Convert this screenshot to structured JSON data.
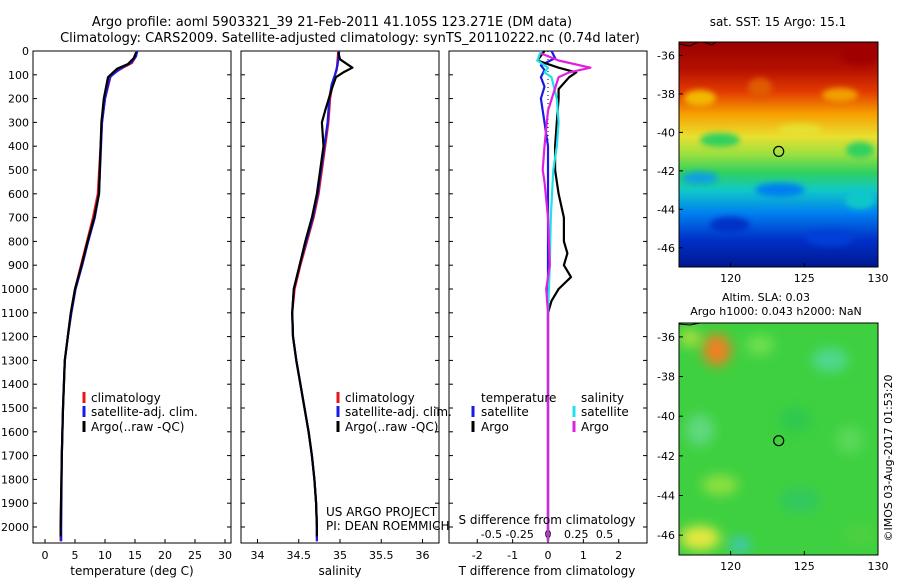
{
  "header": {
    "title_line1": "Argo profile: aoml 5903321_39 21-Feb-2011 41.105S 123.271E (DM data)",
    "title_line2": "Climatology: CARS2009. Satellite-adjusted climatology: synTS_20110222.nc (0.74d later)"
  },
  "credits": {
    "project": "US ARGO PROJECT",
    "pi": "PI: DEAN ROEMMICH",
    "imos": "©IMOS 03-Aug-2017 01:53:20"
  },
  "colors": {
    "climatology": "#e8141b",
    "satellite": "#1a1ae6",
    "argo": "#000000",
    "sal_satellite": "#22e0e8",
    "sal_argo": "#e020e0"
  },
  "chart_data": [
    {
      "type": "line",
      "id": "temperature",
      "xlabel": "temperature (deg C)",
      "xlim": [
        -2,
        31
      ],
      "ylim": [
        2060,
        0
      ],
      "xticks": [
        0,
        5,
        10,
        15,
        20,
        25,
        30
      ],
      "yticks": [
        0,
        100,
        200,
        300,
        400,
        500,
        600,
        700,
        800,
        900,
        1000,
        1100,
        1200,
        1300,
        1400,
        1500,
        1600,
        1700,
        1800,
        1900,
        2000
      ],
      "legend": [
        "climatology",
        "satellite-adj. clim.",
        "Argo(..raw -QC)"
      ],
      "series": [
        {
          "name": "climatology",
          "color": "#e8141b",
          "points": [
            [
              15.3,
              0
            ],
            [
              15.2,
              20
            ],
            [
              14.5,
              50
            ],
            [
              13.0,
              70
            ],
            [
              11.0,
              100
            ],
            [
              10.0,
              200
            ],
            [
              9.5,
              300
            ],
            [
              8.8,
              600
            ],
            [
              8.0,
              700
            ],
            [
              7.0,
              800
            ],
            [
              6.0,
              900
            ],
            [
              5.0,
              1000
            ],
            [
              4.3,
              1100
            ],
            [
              3.8,
              1200
            ],
            [
              3.3,
              1300
            ],
            [
              3.0,
              1500
            ],
            [
              2.8,
              1700
            ],
            [
              2.6,
              2000
            ],
            [
              2.6,
              2060
            ]
          ]
        },
        {
          "name": "satellite-adj. clim.",
          "color": "#1a1ae6",
          "points": [
            [
              15.4,
              0
            ],
            [
              15.1,
              25
            ],
            [
              14.3,
              50
            ],
            [
              12.5,
              75
            ],
            [
              10.8,
              110
            ],
            [
              10.0,
              200
            ],
            [
              9.5,
              300
            ],
            [
              9.0,
              600
            ],
            [
              8.3,
              700
            ],
            [
              7.2,
              800
            ],
            [
              6.2,
              900
            ],
            [
              5.1,
              1000
            ],
            [
              4.4,
              1100
            ],
            [
              3.8,
              1200
            ],
            [
              3.3,
              1300
            ],
            [
              3.0,
              1500
            ],
            [
              2.8,
              1700
            ],
            [
              2.7,
              2000
            ],
            [
              2.7,
              2060
            ]
          ]
        },
        {
          "name": "Argo(..raw -QC)",
          "color": "#000000",
          "points": [
            [
              15.2,
              5
            ],
            [
              14.8,
              30
            ],
            [
              13.8,
              55
            ],
            [
              12.0,
              75
            ],
            [
              10.5,
              110
            ],
            [
              9.8,
              200
            ],
            [
              9.4,
              300
            ],
            [
              9.0,
              600
            ],
            [
              8.2,
              700
            ],
            [
              7.1,
              800
            ],
            [
              6.1,
              900
            ],
            [
              5.0,
              1000
            ],
            [
              4.3,
              1100
            ],
            [
              3.8,
              1200
            ],
            [
              3.3,
              1300
            ],
            [
              3.0,
              1500
            ],
            [
              2.8,
              1700
            ],
            [
              2.6,
              2000
            ],
            [
              2.6,
              2040
            ]
          ]
        }
      ]
    },
    {
      "type": "line",
      "id": "salinity",
      "xlabel": "salinity",
      "xlim": [
        33.8,
        36.2
      ],
      "ylim": [
        2060,
        0
      ],
      "xticks": [
        34,
        34.5,
        35,
        35.5,
        36
      ],
      "legend": [
        "climatology",
        "satellite-adj. clim.",
        "Argo(..raw -QC)"
      ],
      "series": [
        {
          "name": "climatology",
          "color": "#e8141b",
          "points": [
            [
              34.98,
              0
            ],
            [
              34.97,
              40
            ],
            [
              34.96,
              80
            ],
            [
              34.92,
              120
            ],
            [
              34.88,
              200
            ],
            [
              34.86,
              300
            ],
            [
              34.82,
              400
            ],
            [
              34.78,
              500
            ],
            [
              34.74,
              600
            ],
            [
              34.68,
              700
            ],
            [
              34.6,
              800
            ],
            [
              34.52,
              900
            ],
            [
              34.45,
              1000
            ],
            [
              34.42,
              1100
            ],
            [
              34.43,
              1200
            ],
            [
              34.47,
              1300
            ],
            [
              34.52,
              1400
            ],
            [
              34.57,
              1500
            ],
            [
              34.62,
              1600
            ],
            [
              34.66,
              1700
            ],
            [
              34.69,
              1800
            ],
            [
              34.71,
              1900
            ],
            [
              34.72,
              2000
            ],
            [
              34.72,
              2060
            ]
          ]
        },
        {
          "name": "satellite-adj. clim.",
          "color": "#1a1ae6",
          "points": [
            [
              34.99,
              0
            ],
            [
              34.98,
              35
            ],
            [
              34.97,
              60
            ],
            [
              34.94,
              100
            ],
            [
              34.9,
              140
            ],
            [
              34.87,
              200
            ],
            [
              34.85,
              300
            ],
            [
              34.81,
              400
            ],
            [
              34.77,
              500
            ],
            [
              34.73,
              600
            ],
            [
              34.67,
              700
            ],
            [
              34.59,
              800
            ],
            [
              34.51,
              900
            ],
            [
              34.44,
              1000
            ],
            [
              34.42,
              1100
            ],
            [
              34.43,
              1200
            ],
            [
              34.47,
              1300
            ],
            [
              34.52,
              1400
            ],
            [
              34.57,
              1500
            ],
            [
              34.62,
              1600
            ],
            [
              34.66,
              1700
            ],
            [
              34.69,
              1800
            ],
            [
              34.71,
              1900
            ],
            [
              34.72,
              2000
            ],
            [
              34.72,
              2060
            ]
          ]
        },
        {
          "name": "Argo(..raw -QC)",
          "color": "#000000",
          "points": [
            [
              34.98,
              5
            ],
            [
              35.0,
              35
            ],
            [
              35.15,
              70
            ],
            [
              35.04,
              90
            ],
            [
              34.95,
              110
            ],
            [
              34.9,
              160
            ],
            [
              34.82,
              250
            ],
            [
              34.78,
              300
            ],
            [
              34.8,
              400
            ],
            [
              34.76,
              500
            ],
            [
              34.72,
              600
            ],
            [
              34.66,
              700
            ],
            [
              34.58,
              800
            ],
            [
              34.51,
              900
            ],
            [
              34.44,
              1000
            ],
            [
              34.42,
              1100
            ],
            [
              34.43,
              1200
            ],
            [
              34.47,
              1300
            ],
            [
              34.52,
              1400
            ],
            [
              34.57,
              1500
            ],
            [
              34.62,
              1600
            ],
            [
              34.66,
              1700
            ],
            [
              34.69,
              1800
            ],
            [
              34.71,
              1900
            ],
            [
              34.72,
              2000
            ],
            [
              34.72,
              2040
            ]
          ]
        }
      ]
    },
    {
      "type": "line",
      "id": "difference",
      "xlabel": "T difference from climatology",
      "top_label": "S difference from climatology",
      "xlim": [
        -2.8,
        2.8
      ],
      "ylim": [
        2060,
        0
      ],
      "xticks": [
        -2,
        -1,
        0,
        1,
        2
      ],
      "top_tick_labels": [
        "-0.5",
        "-0.25",
        "0",
        "0.25",
        "0.5"
      ],
      "legend_titles": [
        "temperature",
        "salinity"
      ],
      "legend": [
        "satellite",
        "Argo",
        "satellite",
        "Argo"
      ],
      "series": [
        {
          "name": "satellite",
          "color": "#1a1ae6",
          "points": [
            [
              0.1,
              0
            ],
            [
              0.2,
              30
            ],
            [
              -0.2,
              60
            ],
            [
              -0.1,
              80
            ],
            [
              -0.2,
              110
            ],
            [
              -0.1,
              150
            ],
            [
              -0.2,
              200
            ],
            [
              -0.1,
              300
            ],
            [
              0.0,
              400
            ],
            [
              0.0,
              600
            ],
            [
              0.0,
              800
            ],
            [
              0.0,
              1000
            ],
            [
              0.0,
              1500
            ],
            [
              0.0,
              2060
            ]
          ]
        },
        {
          "name": "Argo",
          "color": "#000000",
          "points": [
            [
              -0.1,
              0
            ],
            [
              -0.3,
              40
            ],
            [
              0.3,
              70
            ],
            [
              0.8,
              90
            ],
            [
              0.6,
              110
            ],
            [
              0.3,
              160
            ],
            [
              0.3,
              200
            ],
            [
              0.25,
              300
            ],
            [
              0.2,
              400
            ],
            [
              0.2,
              500
            ],
            [
              0.3,
              600
            ],
            [
              0.45,
              700
            ],
            [
              0.45,
              800
            ],
            [
              0.55,
              850
            ],
            [
              0.45,
              900
            ],
            [
              0.65,
              950
            ],
            [
              0.3,
              1000
            ],
            [
              0.1,
              1050
            ],
            [
              0.0,
              1100
            ],
            [
              0.0,
              1500
            ],
            [
              0.0,
              2060
            ]
          ]
        },
        {
          "name": "satellite",
          "color": "#22e0e8",
          "points": [
            [
              -0.2,
              0
            ],
            [
              -0.3,
              40
            ],
            [
              0.0,
              70
            ],
            [
              -0.1,
              90
            ],
            [
              0.1,
              110
            ],
            [
              0.25,
              200
            ],
            [
              0.3,
              300
            ],
            [
              0.25,
              400
            ],
            [
              0.15,
              500
            ],
            [
              0.08,
              700
            ],
            [
              0.05,
              900
            ],
            [
              0.0,
              1100
            ],
            [
              0.0,
              1500
            ],
            [
              0.0,
              2060
            ]
          ]
        },
        {
          "name": "Argo",
          "color": "#e020e0",
          "points": [
            [
              -0.2,
              10
            ],
            [
              0.3,
              40
            ],
            [
              1.2,
              70
            ],
            [
              0.6,
              90
            ],
            [
              0.3,
              110
            ],
            [
              0.0,
              250
            ],
            [
              -0.1,
              400
            ],
            [
              -0.15,
              500
            ],
            [
              -0.1,
              550
            ],
            [
              0.0,
              700
            ],
            [
              0.05,
              900
            ],
            [
              -0.05,
              1000
            ],
            [
              0.0,
              1100
            ],
            [
              0.0,
              1500
            ],
            [
              0.0,
              2060
            ]
          ]
        }
      ]
    },
    {
      "type": "heatmap",
      "id": "sst_map",
      "title": "sat. SST: 15 Argo: 15.1",
      "xlim": [
        116.5,
        130
      ],
      "ylim": [
        -47,
        -35.3
      ],
      "xticks": [
        120,
        125,
        130
      ],
      "yticks": [
        -36,
        -38,
        -40,
        -42,
        -44,
        -46
      ],
      "marker": [
        123.271,
        -41.105
      ]
    },
    {
      "type": "heatmap",
      "id": "sla_map",
      "title_line1": "Altim. SLA: 0.03",
      "title_line2": "Argo h1000: 0.043 h2000: NaN",
      "xlim": [
        116.5,
        130
      ],
      "ylim": [
        -47,
        -35.3
      ],
      "xticks": [
        120,
        125,
        130
      ],
      "yticks": [
        -36,
        -38,
        -40,
        -42,
        -44,
        -46
      ],
      "marker": [
        123.271,
        -41.105
      ]
    }
  ]
}
